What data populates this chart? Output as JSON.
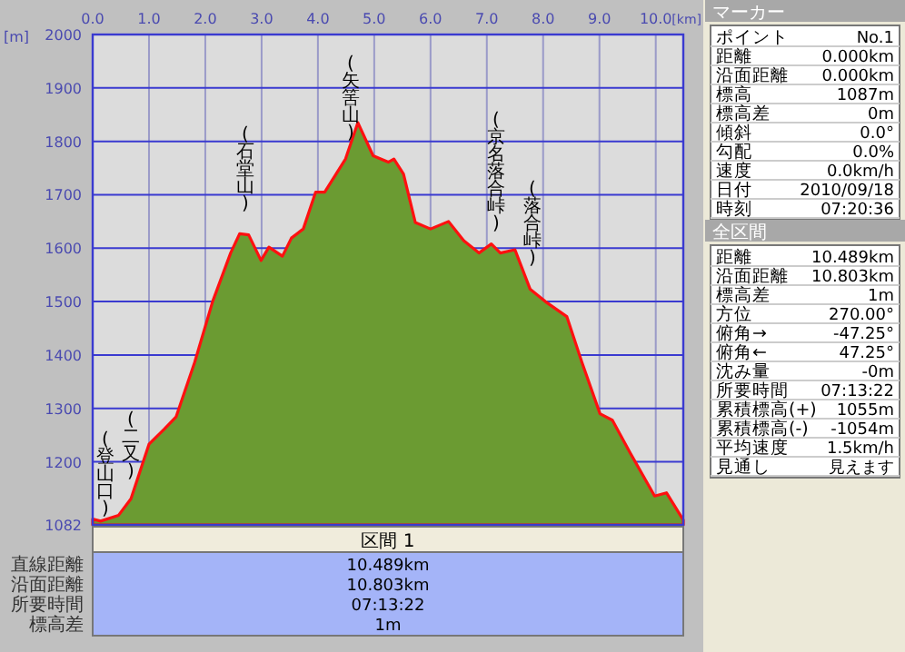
{
  "chart_data": [
    {
      "type": "area",
      "xlabel": "[km]",
      "ylabel": "[m]",
      "xlim": [
        0,
        10.489
      ],
      "ylim": [
        1082,
        2000
      ],
      "xticks": [
        {
          "value": 0,
          "label": "0.0"
        },
        {
          "value": 1,
          "label": "1.0"
        },
        {
          "value": 2,
          "label": "2.0"
        },
        {
          "value": 3,
          "label": "3.0"
        },
        {
          "value": 4,
          "label": "4.0"
        },
        {
          "value": 5,
          "label": "5.0"
        },
        {
          "value": 6,
          "label": "6.0"
        },
        {
          "value": 7,
          "label": "7.0"
        },
        {
          "value": 8,
          "label": "8.0"
        },
        {
          "value": 9,
          "label": "9.0"
        },
        {
          "value": 10,
          "label": "10.0"
        }
      ],
      "yticks": [
        1082,
        1200,
        1300,
        1400,
        1500,
        1600,
        1700,
        1800,
        1900,
        2000
      ],
      "grid": true,
      "series": [
        {
          "color": "#ff1010",
          "x": [
            0,
            0.14,
            0.46,
            0.68,
            1.0,
            1.27,
            1.48,
            1.81,
            2.13,
            2.45,
            2.61,
            2.77,
            2.99,
            3.13,
            3.37,
            3.53,
            3.74,
            3.96,
            4.12,
            4.49,
            4.71,
            4.98,
            5.25,
            5.35,
            5.52,
            5.73,
            6.0,
            6.32,
            6.59,
            6.86,
            7.08,
            7.24,
            7.5,
            7.77,
            8.04,
            8.42,
            8.69,
            9.01,
            9.23,
            9.55,
            9.98,
            10.19,
            10.489
          ],
          "values": [
            1093,
            1089,
            1100,
            1131,
            1233,
            1261,
            1284,
            1386,
            1500,
            1591,
            1627,
            1625,
            1577,
            1602,
            1585,
            1619,
            1636,
            1705,
            1705,
            1767,
            1835,
            1773,
            1761,
            1767,
            1739,
            1648,
            1636,
            1650,
            1614,
            1591,
            1608,
            1591,
            1597,
            1523,
            1500,
            1472,
            1386,
            1290,
            1278,
            1216,
            1136,
            1142,
            1091
          ]
        }
      ],
      "annotations": [
        "(登山口)",
        "(二又)",
        "(石堂山)",
        "(矢筈山)",
        "(京名落合峠)",
        "(落合峠)"
      ]
    },
    {
      "type": "other",
      "title": "マーカー",
      "categories": [
        "ポイント",
        "距離",
        "沿面距離",
        "標高",
        "標高差",
        "傾斜",
        "勾配",
        "速度",
        "日付",
        "時刻"
      ],
      "value_labels": [
        "No.1",
        "0.000km",
        "0.000km",
        "1087m",
        "0m",
        "0.0°",
        "0.0%",
        "0.0km/h",
        "2010/09/18",
        "07:20:36"
      ]
    },
    {
      "type": "other",
      "title": "全区間",
      "categories": [
        "距離",
        "沿面距離",
        "標高差",
        "方位",
        "俯角→",
        "俯角←",
        "沈み量",
        "所要時間",
        "累積標高(+)",
        "累積標高(-)",
        "平均速度",
        "見通し"
      ],
      "value_labels": [
        "10.489km",
        "10.803km",
        "1m",
        "270.00°",
        "-47.25°",
        "47.25°",
        "-0m",
        "07:13:22",
        "1055m",
        "-1054m",
        "1.5km/h",
        "見えます"
      ]
    },
    {
      "type": "other",
      "title": "区間 1",
      "categories": [
        "直線距離",
        "沿面距離",
        "所要時間",
        "標高差"
      ],
      "value_labels": [
        "10.489km",
        "10.803km",
        "07:13:22",
        "1m"
      ]
    }
  ]
}
